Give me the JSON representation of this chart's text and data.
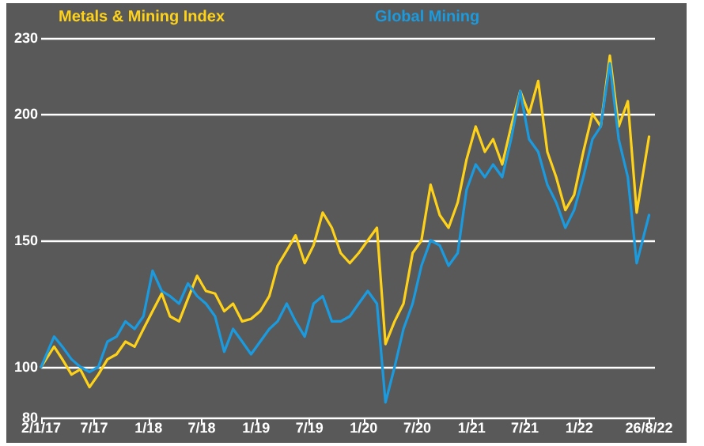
{
  "chart_data": {
    "type": "line",
    "x": [
      "2017-01-02",
      "2017-02-15",
      "2017-03-15",
      "2017-04-15",
      "2017-05-15",
      "2017-06-15",
      "2017-07-15",
      "2017-08-15",
      "2017-09-15",
      "2017-10-15",
      "2017-11-15",
      "2017-12-15",
      "2018-01-15",
      "2018-02-15",
      "2018-03-15",
      "2018-04-15",
      "2018-05-15",
      "2018-06-15",
      "2018-07-15",
      "2018-08-15",
      "2018-09-15",
      "2018-10-15",
      "2018-11-15",
      "2018-12-15",
      "2019-01-15",
      "2019-02-15",
      "2019-03-15",
      "2019-04-15",
      "2019-05-15",
      "2019-06-15",
      "2019-07-15",
      "2019-08-15",
      "2019-09-15",
      "2019-10-15",
      "2019-11-15",
      "2019-12-15",
      "2020-01-15",
      "2020-02-15",
      "2020-03-15",
      "2020-04-15",
      "2020-05-15",
      "2020-06-15",
      "2020-07-15",
      "2020-08-15",
      "2020-09-15",
      "2020-10-15",
      "2020-11-15",
      "2020-12-15",
      "2021-01-15",
      "2021-02-15",
      "2021-03-15",
      "2021-04-15",
      "2021-05-15",
      "2021-06-15",
      "2021-07-15",
      "2021-08-15",
      "2021-09-15",
      "2021-10-15",
      "2021-11-15",
      "2021-12-15",
      "2022-01-15",
      "2022-02-15",
      "2022-03-15",
      "2022-04-15",
      "2022-05-15",
      "2022-06-15",
      "2022-07-15",
      "2022-08-26"
    ],
    "series": [
      {
        "name": "Metals & Mining Index",
        "color": "#ffd21a",
        "values": [
          100,
          108,
          103,
          97,
          99,
          92,
          97,
          103,
          105,
          110,
          108,
          115,
          122,
          129,
          120,
          118,
          127,
          136,
          130,
          129,
          122,
          125,
          118,
          119,
          122,
          128,
          140,
          146,
          152,
          141,
          148,
          161,
          155,
          145,
          141,
          145,
          150,
          155,
          109,
          118,
          125,
          145,
          150,
          172,
          160,
          155,
          165,
          182,
          195,
          185,
          190,
          180,
          195,
          209,
          200,
          213,
          185,
          175,
          162,
          168,
          185,
          200,
          195,
          223,
          195,
          205,
          161,
          191
        ]
      },
      {
        "name": "Global Mining",
        "color": "#1a9be0",
        "values": [
          100,
          112,
          108,
          103,
          100,
          98,
          100,
          110,
          112,
          118,
          115,
          120,
          138,
          130,
          128,
          125,
          133,
          128,
          125,
          120,
          106,
          115,
          110,
          105,
          110,
          115,
          118,
          125,
          118,
          112,
          125,
          128,
          118,
          118,
          120,
          125,
          130,
          125,
          86,
          100,
          115,
          125,
          140,
          150,
          148,
          140,
          145,
          170,
          180,
          175,
          180,
          175,
          190,
          209,
          190,
          185,
          172,
          165,
          155,
          162,
          175,
          190,
          195,
          220,
          190,
          175,
          141,
          160
        ]
      }
    ],
    "xlim": [
      "2017-01-02",
      "2022-09-15"
    ],
    "xticks": [
      {
        "value": "2017-01-02",
        "label": "2/1/17"
      },
      {
        "value": "2017-07-01",
        "label": "7/17"
      },
      {
        "value": "2018-01-01",
        "label": "1/18"
      },
      {
        "value": "2018-07-01",
        "label": "7/18"
      },
      {
        "value": "2019-01-01",
        "label": "1/19"
      },
      {
        "value": "2019-07-01",
        "label": "7/19"
      },
      {
        "value": "2020-01-01",
        "label": "1/20"
      },
      {
        "value": "2020-07-01",
        "label": "7/20"
      },
      {
        "value": "2021-01-01",
        "label": "1/21"
      },
      {
        "value": "2021-07-01",
        "label": "7/21"
      },
      {
        "value": "2022-01-01",
        "label": "1/22"
      },
      {
        "value": "2022-08-26",
        "label": "26/8/22"
      }
    ],
    "ylim": [
      80,
      230
    ],
    "yticks": [
      80,
      100,
      150,
      200,
      230
    ],
    "grid": "y",
    "legend": "top left",
    "marker": "none",
    "line_style": "solid"
  }
}
